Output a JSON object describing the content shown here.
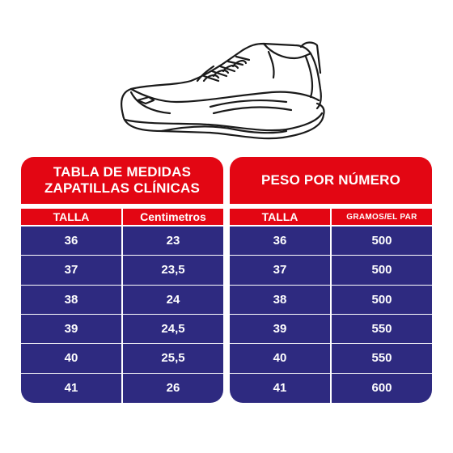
{
  "shoe_icon": "sneaker-outline-icon",
  "colors": {
    "red": "#e30613",
    "navy": "#2e2a80",
    "white": "#ffffff"
  },
  "left_table": {
    "title_line1": "TABLA DE MEDIDAS",
    "title_line2": "ZAPATILLAS CLÍNICAS",
    "headers": [
      "TALLA",
      "Centimetros"
    ],
    "rows": [
      [
        "36",
        "23"
      ],
      [
        "37",
        "23,5"
      ],
      [
        "38",
        "24"
      ],
      [
        "39",
        "24,5"
      ],
      [
        "40",
        "25,5"
      ],
      [
        "41",
        "26"
      ]
    ]
  },
  "right_table": {
    "title": "PESO POR NÚMERO",
    "headers": [
      "TALLA",
      "GRAMOS/EL PAR"
    ],
    "rows": [
      [
        "36",
        "500"
      ],
      [
        "37",
        "500"
      ],
      [
        "38",
        "500"
      ],
      [
        "39",
        "550"
      ],
      [
        "40",
        "550"
      ],
      [
        "41",
        "600"
      ]
    ]
  }
}
